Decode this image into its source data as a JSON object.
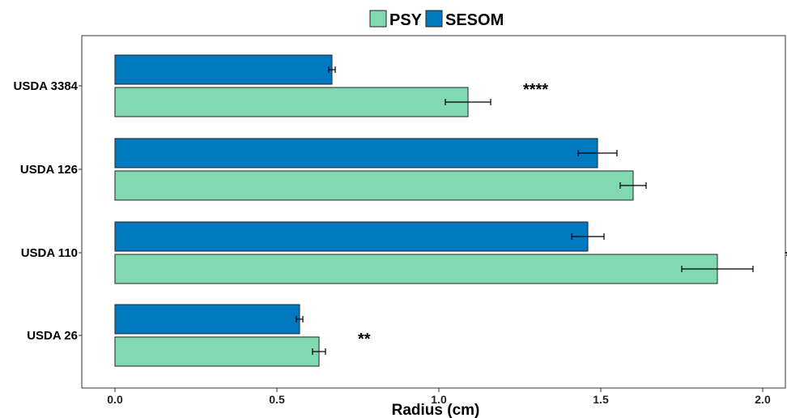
{
  "chart_data": {
    "type": "bar",
    "orientation": "horizontal",
    "categories": [
      "USDA 26",
      "USDA 110",
      "USDA 126",
      "USDA 3384"
    ],
    "series": [
      {
        "name": "PSY",
        "color": "#82d9b1",
        "values": [
          0.63,
          1.86,
          1.6,
          1.09
        ],
        "errors": [
          0.02,
          0.11,
          0.04,
          0.07
        ]
      },
      {
        "name": "SESOM",
        "color": "#0079c0",
        "values": [
          0.57,
          1.46,
          1.49,
          0.67
        ],
        "errors": [
          0.01,
          0.05,
          0.06,
          0.01
        ]
      }
    ],
    "significance": [
      "**",
      "****",
      "",
      "****"
    ],
    "xlabel": "Radius (cm)",
    "ylabel": "",
    "xlim": [
      0.0,
      2.0
    ],
    "xticks": [
      "0.0",
      "0.5",
      "1.0",
      "1.5",
      "2.0"
    ],
    "grid": false,
    "legend": "top-center"
  }
}
